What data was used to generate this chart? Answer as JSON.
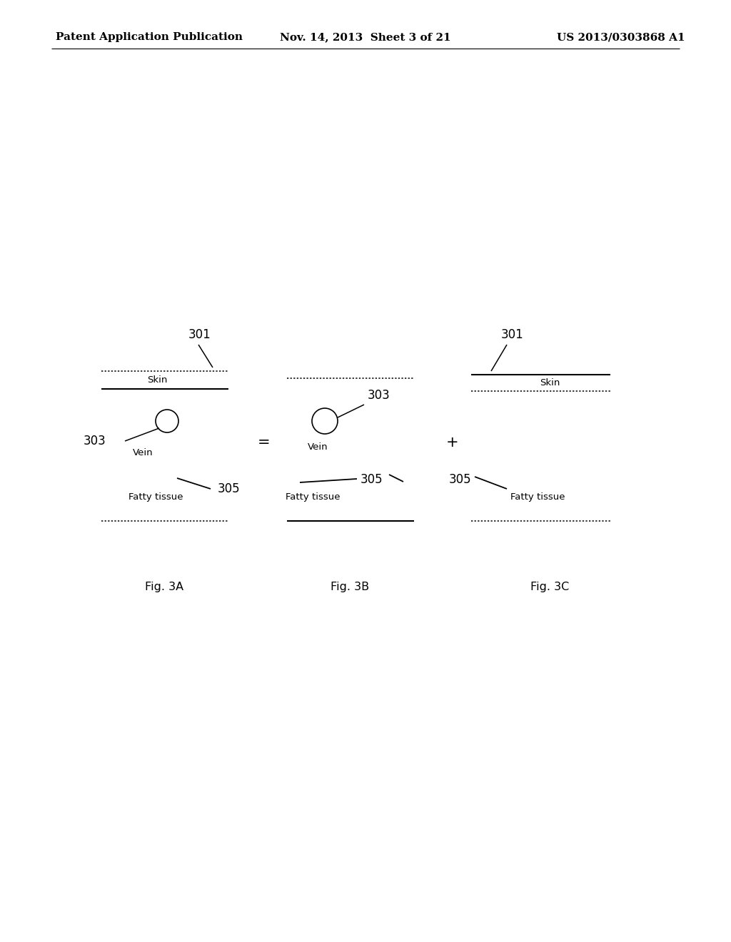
{
  "background_color": "#ffffff",
  "header_left": "Patent Application Publication",
  "header_center": "Nov. 14, 2013  Sheet 3 of 21",
  "header_right": "US 2013/0303868 A1",
  "header_fontsize": 11,
  "fig3A_label": "Fig. 3A",
  "fig3B_label": "Fig. 3B",
  "fig3C_label": "Fig. 3C",
  "label_301": "301",
  "label_303": "303",
  "label_305": "305",
  "label_skin": "Skin",
  "label_vein": "Vein",
  "label_fatty": "Fatty tissue"
}
